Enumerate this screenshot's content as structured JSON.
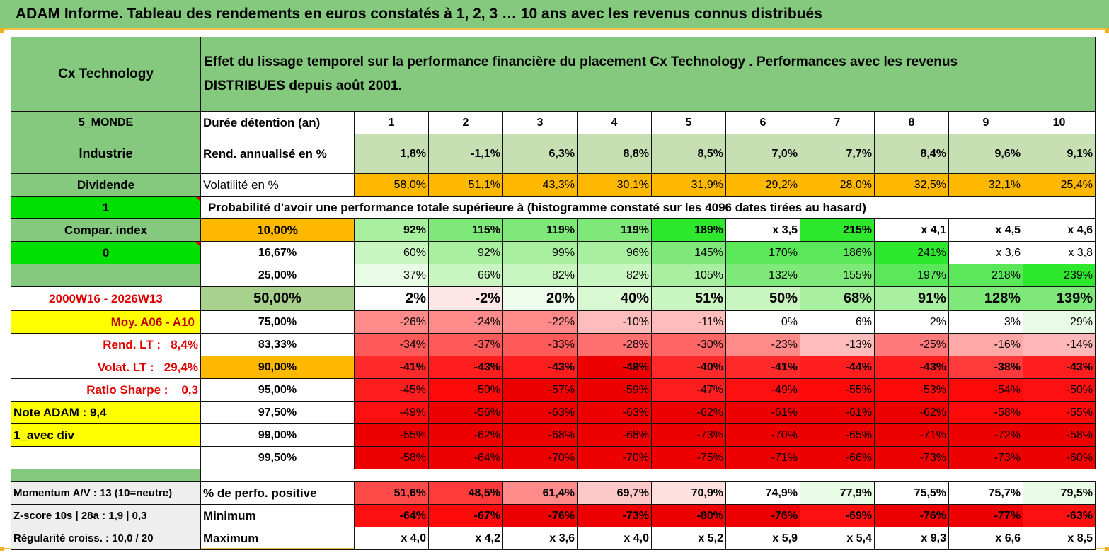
{
  "title": "ADAM Informe. Tableau des rendements en euros constatés à 1, 2, 3 … 10 ans avec les revenus connus distribués",
  "fund_name": "Cx Technology",
  "header_description": "Effet du lissage temporel sur la performance financière du placement Cx Technology . Performances avec les revenus DISTRIBUES depuis août 2001.",
  "side_labels": {
    "zone": "5_MONDE",
    "sector": "Industrie",
    "type": "Dividende",
    "flag1": "1",
    "compar": "Compar. index",
    "flag0": "0",
    "period": "2000W16 - 2026W13",
    "moy": "Moy. A06 - A10",
    "rend_lt_label": "Rend. LT :",
    "rend_lt_value": "8,4%",
    "volat_lt_label": "Volat. LT :",
    "volat_lt_value": "29,4%",
    "sharpe_label": "Ratio Sharpe :",
    "sharpe_value": "0,3",
    "note": "Note ADAM : 9,4",
    "avec_div": "1_avec div"
  },
  "duration_label": "Durée détention (an)",
  "durations": [
    "1",
    "2",
    "3",
    "4",
    "5",
    "6",
    "7",
    "8",
    "9",
    "10"
  ],
  "rend_label": "Rend. annualisé en %",
  "rend_values": [
    "1,8%",
    "-1,1%",
    "6,3%",
    "8,8%",
    "8,5%",
    "7,0%",
    "7,7%",
    "8,4%",
    "9,6%",
    "9,1%"
  ],
  "vol_label": "Volatilité en %",
  "vol_values": [
    "58,0%",
    "51,1%",
    "43,3%",
    "30,1%",
    "31,9%",
    "29,2%",
    "28,0%",
    "32,5%",
    "32,1%",
    "25,4%"
  ],
  "prob_title": "Probabilité d'avoir une performance totale supérieure à (histogramme constaté sur les 4096 dates tirées au hasard)",
  "percentile_rows": [
    {
      "p": "10,00%",
      "values": [
        "92%",
        "115%",
        "119%",
        "119%",
        "189%",
        "x 3,5",
        "215%",
        "x 4,1",
        "x 4,5",
        "x 4,6"
      ]
    },
    {
      "p": "16,67%",
      "values": [
        "60%",
        "92%",
        "99%",
        "96%",
        "145%",
        "170%",
        "186%",
        "241%",
        "x 3,6",
        "x 3,8"
      ]
    },
    {
      "p": "25,00%",
      "values": [
        "37%",
        "66%",
        "82%",
        "82%",
        "105%",
        "132%",
        "155%",
        "197%",
        "218%",
        "239%"
      ]
    },
    {
      "p": "50,00%",
      "values": [
        "2%",
        "-2%",
        "20%",
        "40%",
        "51%",
        "50%",
        "68%",
        "91%",
        "128%",
        "139%"
      ]
    },
    {
      "p": "75,00%",
      "values": [
        "-26%",
        "-24%",
        "-22%",
        "-10%",
        "-11%",
        "0%",
        "6%",
        "2%",
        "3%",
        "29%"
      ]
    },
    {
      "p": "83,33%",
      "values": [
        "-34%",
        "-37%",
        "-33%",
        "-28%",
        "-30%",
        "-23%",
        "-13%",
        "-25%",
        "-16%",
        "-14%"
      ]
    },
    {
      "p": "90,00%",
      "values": [
        "-41%",
        "-43%",
        "-43%",
        "-49%",
        "-40%",
        "-41%",
        "-44%",
        "-43%",
        "-38%",
        "-43%"
      ]
    },
    {
      "p": "95,00%",
      "values": [
        "-45%",
        "-50%",
        "-57%",
        "-59%",
        "-47%",
        "-49%",
        "-55%",
        "-53%",
        "-54%",
        "-50%"
      ]
    },
    {
      "p": "97,50%",
      "values": [
        "-49%",
        "-56%",
        "-63%",
        "-63%",
        "-62%",
        "-61%",
        "-61%",
        "-62%",
        "-58%",
        "-55%"
      ]
    },
    {
      "p": "99,00%",
      "values": [
        "-55%",
        "-62%",
        "-68%",
        "-68%",
        "-73%",
        "-70%",
        "-65%",
        "-71%",
        "-72%",
        "-58%"
      ]
    },
    {
      "p": "99,50%",
      "values": [
        "-58%",
        "-64%",
        "-70%",
        "-70%",
        "-75%",
        "-71%",
        "-66%",
        "-73%",
        "-73%",
        "-60%"
      ]
    }
  ],
  "bottom_rows": [
    {
      "side": "Momentum A/V : 13 (10=neutre)",
      "label": "% de perfo. positive",
      "values": [
        "51,6%",
        "48,5%",
        "61,4%",
        "69,7%",
        "70,9%",
        "74,9%",
        "77,9%",
        "75,5%",
        "75,7%",
        "79,5%"
      ]
    },
    {
      "side": "Z-score 10s | 28a : 1,9 | 0,3",
      "label": "Minimum",
      "values": [
        "-64%",
        "-67%",
        "-76%",
        "-73%",
        "-80%",
        "-76%",
        "-69%",
        "-76%",
        "-77%",
        "-63%"
      ]
    },
    {
      "side": "Régularité croiss. : 10,0 / 20",
      "label": "Maximum",
      "values": [
        "x 4,0",
        "x 4,2",
        "x 3,6",
        "x 4,0",
        "x 5,2",
        "x 5,9",
        "x 5,4",
        "x 9,3",
        "x 6,6",
        "x 8,5"
      ]
    }
  ],
  "colors": {
    "header_green": "#84c97d",
    "light_green": "#a9d18e",
    "bright_green": "#00e000",
    "orange": "#ffb800",
    "yellow": "#ffff00",
    "red": "#e00000",
    "rend_row": "#c6e0b4"
  },
  "cell_colors": {
    "rend": [
      "#c6e0b4",
      "#c6e0b4",
      "#c6e0b4",
      "#c6e0b4",
      "#c6e0b4",
      "#c6e0b4",
      "#c6e0b4",
      "#c6e0b4",
      "#c6e0b4",
      "#c6e0b4"
    ],
    "vol": [
      "#ffb800",
      "#ffb800",
      "#ffb800",
      "#ffb800",
      "#ffb800",
      "#ffb800",
      "#ffb800",
      "#ffb800",
      "#ffb800",
      "#ffb800"
    ],
    "percentiles": [
      [
        "#a8f0a0",
        "#7ee878",
        "#7ee878",
        "#7ee878",
        "#2ee82e",
        "#ffffff",
        "#2ee82e",
        "#ffffff",
        "#ffffff",
        "#ffffff"
      ],
      [
        "#c8f5c0",
        "#a8f0a0",
        "#a8f0a0",
        "#a8f0a0",
        "#7ee878",
        "#5ae85a",
        "#5ae85a",
        "#2ee82e",
        "#ffffff",
        "#ffffff"
      ],
      [
        "#e8fbe4",
        "#c8f5c0",
        "#c8f5c0",
        "#c8f5c0",
        "#a8f0a0",
        "#7ee878",
        "#7ee878",
        "#5ae85a",
        "#5ae85a",
        "#2ee82e"
      ],
      [
        "#ffffff",
        "#ffe6e6",
        "#eefcec",
        "#d8f8d2",
        "#c8f5c0",
        "#c8f5c0",
        "#a8f0a0",
        "#a8f0a0",
        "#7ee878",
        "#7ee878"
      ],
      [
        "#ff8a8a",
        "#ff8a8a",
        "#ff8a8a",
        "#ffbcbc",
        "#ffbcbc",
        "#ffffff",
        "#ffffff",
        "#ffffff",
        "#ffffff",
        "#e8fbe4"
      ],
      [
        "#ff5a5a",
        "#ff5a5a",
        "#ff5a5a",
        "#ff7070",
        "#ff6666",
        "#ff8a8a",
        "#ffbcbc",
        "#ff7a7a",
        "#ffa8a8",
        "#ffb8b8"
      ],
      [
        "#ff2a2a",
        "#ff1e1e",
        "#ff1e1e",
        "#ee0000",
        "#ff2a2a",
        "#ff2a2a",
        "#ff1e1e",
        "#ff1e1e",
        "#ff3a3a",
        "#ff1e1e"
      ],
      [
        "#ff1e1e",
        "#ff0a0a",
        "#ee0000",
        "#ee0000",
        "#ff1e1e",
        "#ff1010",
        "#ff0a0a",
        "#ff0a0a",
        "#ff0a0a",
        "#ff1010"
      ],
      [
        "#ff1010",
        "#ee0000",
        "#ee0000",
        "#ee0000",
        "#ee0000",
        "#ee0000",
        "#ee0000",
        "#ee0000",
        "#ff0a0a",
        "#ff0a0a"
      ],
      [
        "#ee0000",
        "#ee0000",
        "#ee0000",
        "#ee0000",
        "#ee0000",
        "#ee0000",
        "#ee0000",
        "#ee0000",
        "#ee0000",
        "#ee0000"
      ],
      [
        "#ee0000",
        "#ee0000",
        "#ee0000",
        "#ee0000",
        "#ee0000",
        "#ee0000",
        "#ee0000",
        "#ee0000",
        "#ee0000",
        "#ee0000"
      ]
    ],
    "positive": [
      "#ff4a4a",
      "#ff3a3a",
      "#ff8a8a",
      "#ffc8c8",
      "#ffe0e0",
      "#ffffff",
      "#e8fbe4",
      "#ffffff",
      "#ffffff",
      "#e8fbe4"
    ],
    "minimum": [
      "#ff1010",
      "#ff0a0a",
      "#ee0000",
      "#ee0000",
      "#ee0000",
      "#ee0000",
      "#ff1010",
      "#ee0000",
      "#ee0000",
      "#ff1010"
    ],
    "maximum": [
      "#ffffff",
      "#ffffff",
      "#ffffff",
      "#ffffff",
      "#ffffff",
      "#ffffff",
      "#ffffff",
      "#ffffff",
      "#ffffff",
      "#ffffff"
    ]
  }
}
